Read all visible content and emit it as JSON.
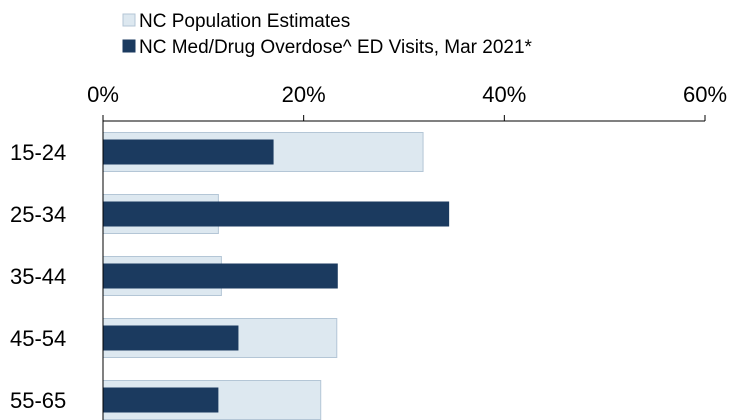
{
  "colors": {
    "population": "#dde8f0",
    "population_border": "#b4c6d6",
    "overdose": "#1b3a5f",
    "axis": "#000000"
  },
  "chart_data": {
    "type": "bar",
    "orientation": "horizontal",
    "categories": [
      "15-24",
      "25-34",
      "35-44",
      "45-54",
      "55-65"
    ],
    "series": [
      {
        "name": "NC Population Estimates",
        "values": [
          31.9,
          11.5,
          11.8,
          23.3,
          21.7
        ]
      },
      {
        "name": "NC Med/Drug Overdose^ ED Visits, Mar 2021*",
        "values": [
          17.0,
          34.5,
          23.4,
          13.5,
          11.5
        ]
      }
    ],
    "xlim": [
      0,
      60
    ],
    "xticks": [
      "0%",
      "20%",
      "40%",
      "60%"
    ],
    "x_axis_position": "top",
    "legend_position": "top-left",
    "grid": false,
    "title": "",
    "xlabel": "",
    "ylabel": ""
  }
}
